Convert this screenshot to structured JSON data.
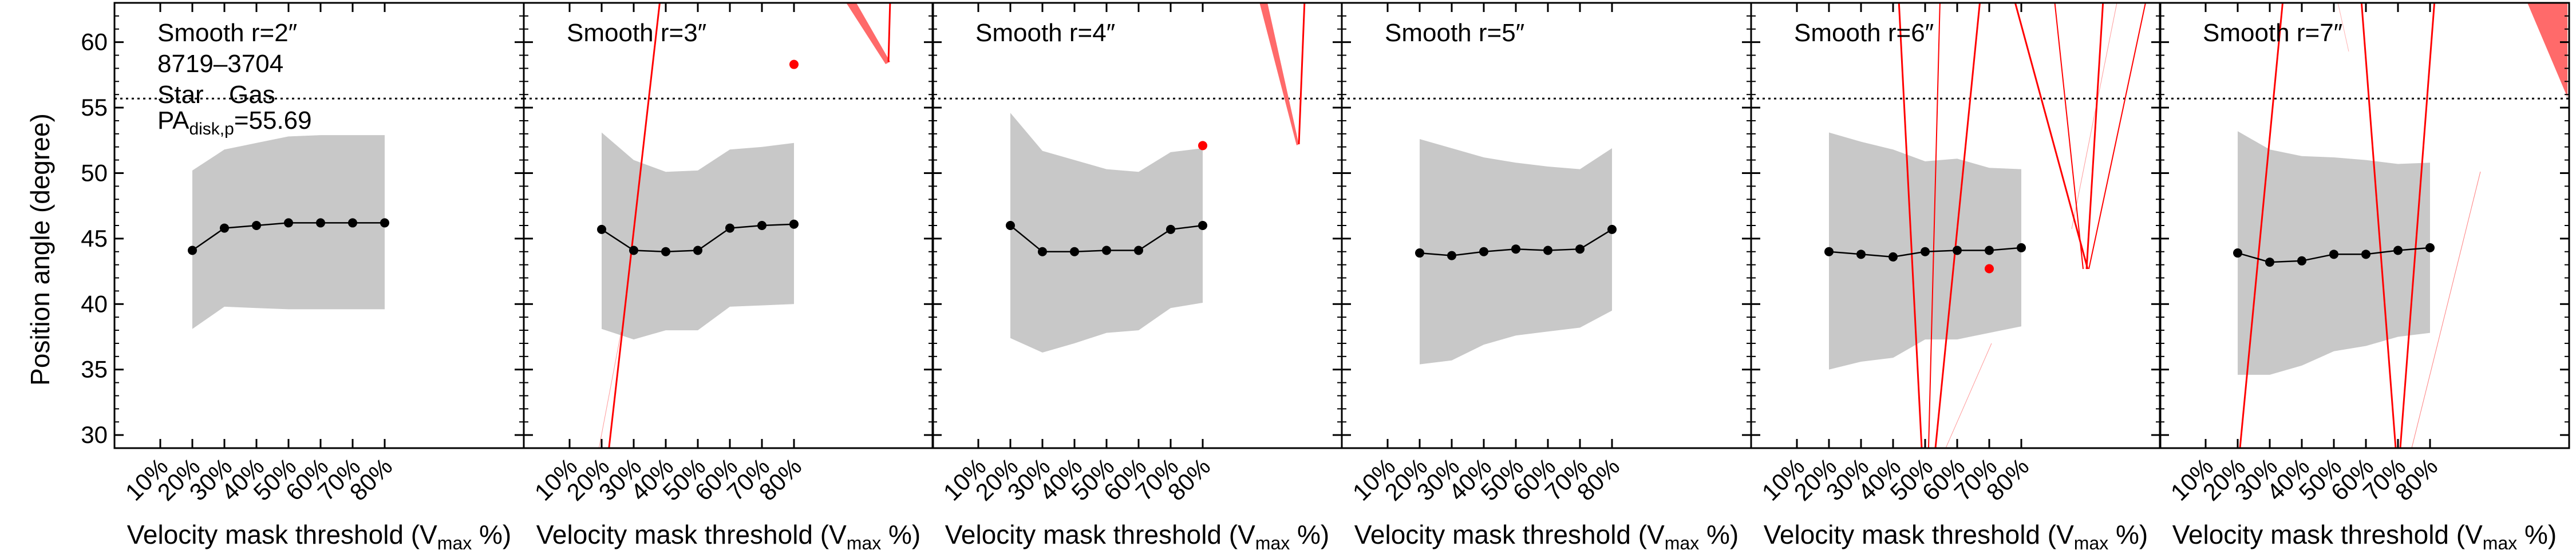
{
  "colors": {
    "band": "#c8c8c8",
    "star_series": "#000000",
    "gas_series": "#ff0000",
    "gas_fill": "#ff6a6a",
    "reference_line": "#000000"
  },
  "figure": {
    "ylabel": "Position angle (degree)",
    "xlabel_main": "Velocity mask threshold (V",
    "xlabel_sub": "max",
    "xlabel_end": " %)",
    "galaxy_id": "8719–3704",
    "legend_star": "Star",
    "legend_gas": "Gas",
    "pa_prefix": "PA",
    "pa_sub": "disk,p",
    "pa_value": "=55.69"
  },
  "chart_data": {
    "type": "line",
    "categories": [
      "10%",
      "20%",
      "30%",
      "40%",
      "50%",
      "60%",
      "70%",
      "80%"
    ],
    "ylim": [
      29,
      63
    ],
    "yticks": [
      30,
      35,
      40,
      45,
      50,
      55,
      60
    ],
    "reference_line": 55.69,
    "grid": false,
    "panels": [
      {
        "title": "Smooth r=2″",
        "star": {
          "x": [
            20,
            30,
            40,
            50,
            60,
            70,
            80
          ],
          "y": [
            44.1,
            45.8,
            46.0,
            46.2,
            46.2,
            46.2,
            46.2
          ]
        },
        "band_upper": [
          50.2,
          51.8,
          52.3,
          52.8,
          52.9,
          52.9,
          52.9
        ],
        "band_lower": [
          38.1,
          39.8,
          39.7,
          39.6,
          39.6,
          39.6,
          39.6
        ],
        "gas_points": []
      },
      {
        "title": "Smooth r=3″",
        "star": {
          "x": [
            20,
            30,
            40,
            50,
            60,
            70,
            80
          ],
          "y": [
            45.7,
            44.1,
            44.0,
            44.1,
            45.8,
            46.0,
            46.1
          ]
        },
        "band_upper": [
          53.1,
          51.0,
          50.1,
          50.2,
          51.8,
          52.0,
          52.3
        ],
        "band_lower": [
          38.1,
          37.3,
          38.0,
          38.0,
          39.8,
          39.9,
          40.0
        ],
        "gas_points": [
          {
            "x": 80,
            "y": 58.3
          }
        ]
      },
      {
        "title": "Smooth r=4″",
        "star": {
          "x": [
            20,
            30,
            40,
            50,
            60,
            70,
            80
          ],
          "y": [
            46.0,
            44.0,
            44.0,
            44.1,
            44.1,
            45.7,
            46.0
          ]
        },
        "band_upper": [
          54.6,
          51.7,
          51.0,
          50.3,
          50.1,
          51.6,
          51.9
        ],
        "band_lower": [
          37.4,
          36.3,
          37.0,
          37.8,
          38.0,
          39.7,
          40.1
        ],
        "gas_points": [
          {
            "x": 80,
            "y": 52.1
          }
        ]
      },
      {
        "title": "Smooth r=5″",
        "star": {
          "x": [
            20,
            30,
            40,
            50,
            60,
            70,
            80
          ],
          "y": [
            43.9,
            43.7,
            44.0,
            44.2,
            44.1,
            44.2,
            45.7
          ]
        },
        "band_upper": [
          52.6,
          51.9,
          51.2,
          50.8,
          50.5,
          50.3,
          51.9
        ],
        "band_lower": [
          35.4,
          35.7,
          36.9,
          37.6,
          37.9,
          38.2,
          39.5
        ],
        "gas_points": []
      },
      {
        "title": "Smooth r=6″",
        "star": {
          "x": [
            20,
            30,
            40,
            50,
            60,
            70,
            80
          ],
          "y": [
            44.0,
            43.8,
            43.6,
            44.0,
            44.1,
            44.1,
            44.3
          ]
        },
        "band_upper": [
          53.1,
          52.4,
          51.8,
          50.9,
          51.1,
          50.4,
          50.3
        ],
        "band_lower": [
          35.0,
          35.6,
          35.9,
          37.3,
          37.3,
          37.8,
          38.3
        ],
        "gas_points": [
          {
            "x": 70,
            "y": 42.7
          }
        ]
      },
      {
        "title": "Smooth r=7″",
        "star": {
          "x": [
            20,
            30,
            40,
            50,
            60,
            70,
            80
          ],
          "y": [
            43.9,
            43.2,
            43.3,
            43.8,
            43.8,
            44.1,
            44.3
          ]
        },
        "band_upper": [
          53.2,
          51.8,
          51.3,
          51.2,
          51.0,
          50.7,
          50.8
        ],
        "band_lower": [
          34.6,
          34.6,
          35.3,
          36.4,
          36.8,
          37.5,
          37.8
        ],
        "gas_points": []
      }
    ]
  }
}
